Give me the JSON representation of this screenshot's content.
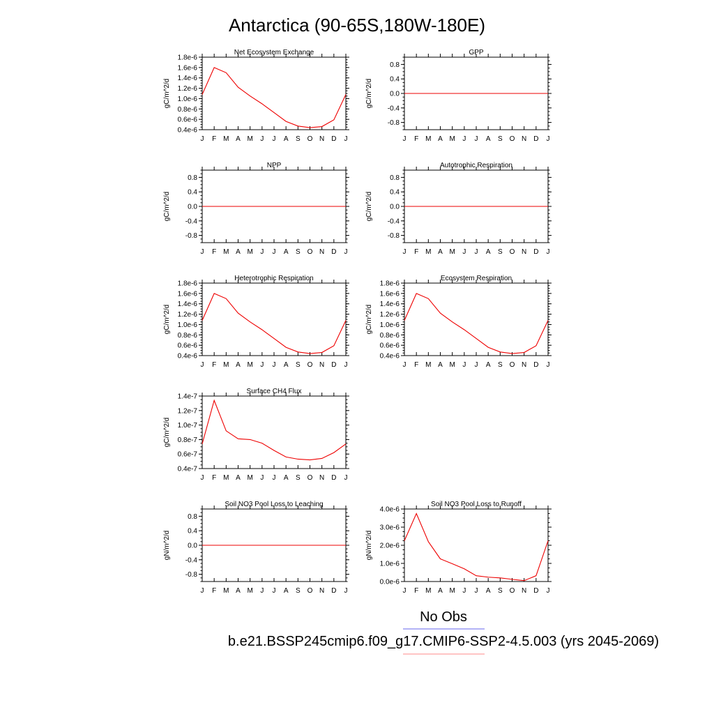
{
  "figure": {
    "title": "Antarctica (90-65S,180W-180E)"
  },
  "legend": {
    "items": [
      {
        "label": "No Obs",
        "color": "#6666ee"
      },
      {
        "label": "b.e21.BSSP245cmip6.f09_g17.CMIP6-SSP2-4.5.003 (yrs 2045-2069)",
        "color": "#ff8888"
      }
    ]
  },
  "colors": {
    "series": "#ee0000",
    "axis": "#000000"
  },
  "chart_data": [
    {
      "type": "line",
      "title": "Net Ecosystem Exchange",
      "ylabel": "gC/m^2/d",
      "x": [
        "J",
        "F",
        "M",
        "A",
        "M",
        "J",
        "J",
        "A",
        "S",
        "O",
        "N",
        "D",
        "J"
      ],
      "ylim": [
        4e-07,
        1.8e-06
      ],
      "yticks": [
        4e-07,
        6e-07,
        8e-07,
        1e-06,
        1.2e-06,
        1.4e-06,
        1.6e-06,
        1.8e-06
      ],
      "ytick_labels": [
        "0.4e-6",
        "0.6e-6",
        "0.8e-6",
        "1.0e-6",
        "1.2e-6",
        "1.4e-6",
        "1.6e-6",
        "1.8e-6"
      ],
      "series": [
        {
          "values": [
            1.08e-06,
            1.6e-06,
            1.5e-06,
            1.22e-06,
            1.05e-06,
            9e-07,
            7.3e-07,
            5.6e-07,
            4.7e-07,
            4.4e-07,
            4.6e-07,
            5.9e-07,
            1.08e-06
          ]
        }
      ]
    },
    {
      "type": "line",
      "title": "GPP",
      "ylabel": "gC/m^2/d",
      "x": [
        "J",
        "F",
        "M",
        "A",
        "M",
        "J",
        "J",
        "A",
        "S",
        "O",
        "N",
        "D",
        "J"
      ],
      "ylim": [
        -1.0,
        1.0
      ],
      "yticks": [
        -0.8,
        -0.4,
        0.0,
        0.4,
        0.8
      ],
      "ytick_labels": [
        "-0.8",
        "-0.4",
        "0.0",
        "0.4",
        "0.8"
      ],
      "series": [
        {
          "values": [
            0,
            0,
            0,
            0,
            0,
            0,
            0,
            0,
            0,
            0,
            0,
            0,
            0
          ]
        }
      ]
    },
    {
      "type": "line",
      "title": "NPP",
      "ylabel": "gC/m^2/d",
      "x": [
        "J",
        "F",
        "M",
        "A",
        "M",
        "J",
        "J",
        "A",
        "S",
        "O",
        "N",
        "D",
        "J"
      ],
      "ylim": [
        -1.0,
        1.0
      ],
      "yticks": [
        -0.8,
        -0.4,
        0.0,
        0.4,
        0.8
      ],
      "ytick_labels": [
        "-0.8",
        "-0.4",
        "0.0",
        "0.4",
        "0.8"
      ],
      "series": [
        {
          "values": [
            0,
            0,
            0,
            0,
            0,
            0,
            0,
            0,
            0,
            0,
            0,
            0,
            0
          ]
        }
      ]
    },
    {
      "type": "line",
      "title": "Autotrophic Respiration",
      "ylabel": "gC/m^2/d",
      "x": [
        "J",
        "F",
        "M",
        "A",
        "M",
        "J",
        "J",
        "A",
        "S",
        "O",
        "N",
        "D",
        "J"
      ],
      "ylim": [
        -1.0,
        1.0
      ],
      "yticks": [
        -0.8,
        -0.4,
        0.0,
        0.4,
        0.8
      ],
      "ytick_labels": [
        "-0.8",
        "-0.4",
        "0.0",
        "0.4",
        "0.8"
      ],
      "series": [
        {
          "values": [
            0,
            0,
            0,
            0,
            0,
            0,
            0,
            0,
            0,
            0,
            0,
            0,
            0
          ]
        }
      ]
    },
    {
      "type": "line",
      "title": "Heterotrophic Respiration",
      "ylabel": "gC/m^2/d",
      "x": [
        "J",
        "F",
        "M",
        "A",
        "M",
        "J",
        "J",
        "A",
        "S",
        "O",
        "N",
        "D",
        "J"
      ],
      "ylim": [
        4e-07,
        1.8e-06
      ],
      "yticks": [
        4e-07,
        6e-07,
        8e-07,
        1e-06,
        1.2e-06,
        1.4e-06,
        1.6e-06,
        1.8e-06
      ],
      "ytick_labels": [
        "0.4e-6",
        "0.6e-6",
        "0.8e-6",
        "1.0e-6",
        "1.2e-6",
        "1.4e-6",
        "1.6e-6",
        "1.8e-6"
      ],
      "series": [
        {
          "values": [
            1.08e-06,
            1.6e-06,
            1.5e-06,
            1.22e-06,
            1.05e-06,
            9e-07,
            7.3e-07,
            5.6e-07,
            4.7e-07,
            4.4e-07,
            4.6e-07,
            5.9e-07,
            1.08e-06
          ]
        }
      ]
    },
    {
      "type": "line",
      "title": "Ecosystem Respiration",
      "ylabel": "gC/m^2/d",
      "x": [
        "J",
        "F",
        "M",
        "A",
        "M",
        "J",
        "J",
        "A",
        "S",
        "O",
        "N",
        "D",
        "J"
      ],
      "ylim": [
        4e-07,
        1.8e-06
      ],
      "yticks": [
        4e-07,
        6e-07,
        8e-07,
        1e-06,
        1.2e-06,
        1.4e-06,
        1.6e-06,
        1.8e-06
      ],
      "ytick_labels": [
        "0.4e-6",
        "0.6e-6",
        "0.8e-6",
        "1.0e-6",
        "1.2e-6",
        "1.4e-6",
        "1.6e-6",
        "1.8e-6"
      ],
      "series": [
        {
          "values": [
            1.08e-06,
            1.6e-06,
            1.5e-06,
            1.22e-06,
            1.05e-06,
            9e-07,
            7.3e-07,
            5.6e-07,
            4.7e-07,
            4.4e-07,
            4.6e-07,
            5.9e-07,
            1.08e-06
          ]
        }
      ]
    },
    {
      "type": "line",
      "title": "Surface CH4 Flux",
      "ylabel": "gC/m^2/d",
      "x": [
        "J",
        "F",
        "M",
        "A",
        "M",
        "J",
        "J",
        "A",
        "S",
        "O",
        "N",
        "D",
        "J"
      ],
      "ylim": [
        4e-08,
        1.4e-07
      ],
      "yticks": [
        4e-08,
        6e-08,
        8e-08,
        1e-07,
        1.2e-07,
        1.4e-07
      ],
      "ytick_labels": [
        "0.4e-7",
        "0.6e-7",
        "0.8e-7",
        "1.0e-7",
        "1.2e-7",
        "1.4e-7"
      ],
      "series": [
        {
          "values": [
            7.4e-08,
            1.34e-07,
            9.2e-08,
            8.1e-08,
            8e-08,
            7.5e-08,
            6.5e-08,
            5.6e-08,
            5.3e-08,
            5.2e-08,
            5.4e-08,
            6.2e-08,
            7.4e-08
          ]
        }
      ]
    },
    {
      "type": "line",
      "title": "Soil NO3 Pool Loss to Leaching",
      "ylabel": "gN/m^2/d",
      "x": [
        "J",
        "F",
        "M",
        "A",
        "M",
        "J",
        "J",
        "A",
        "S",
        "O",
        "N",
        "D",
        "J"
      ],
      "ylim": [
        -1.0,
        1.0
      ],
      "yticks": [
        -0.8,
        -0.4,
        0.0,
        0.4,
        0.8
      ],
      "ytick_labels": [
        "-0.8",
        "-0.4",
        "0.0",
        "0.4",
        "0.8"
      ],
      "series": [
        {
          "values": [
            0,
            0,
            0,
            0,
            0,
            0,
            0,
            0,
            0,
            0,
            0,
            0,
            0
          ]
        }
      ]
    },
    {
      "type": "line",
      "title": "Soil NO3 Pool Loss to Runoff",
      "ylabel": "gN/m^2/d",
      "x": [
        "J",
        "F",
        "M",
        "A",
        "M",
        "J",
        "J",
        "A",
        "S",
        "O",
        "N",
        "D",
        "J"
      ],
      "ylim": [
        0.0,
        4e-06
      ],
      "yticks": [
        0.0,
        1e-06,
        2e-06,
        3e-06,
        4e-06
      ],
      "ytick_labels": [
        "0.0e-6",
        "1.0e-6",
        "2.0e-6",
        "3.0e-6",
        "4.0e-6"
      ],
      "series": [
        {
          "values": [
            2.25e-06,
            3.75e-06,
            2.2e-06,
            1.25e-06,
            9.8e-07,
            7e-07,
            3.2e-07,
            2.4e-07,
            2e-07,
            1.2e-07,
            5e-08,
            3.2e-07,
            2.25e-06
          ]
        }
      ]
    }
  ]
}
